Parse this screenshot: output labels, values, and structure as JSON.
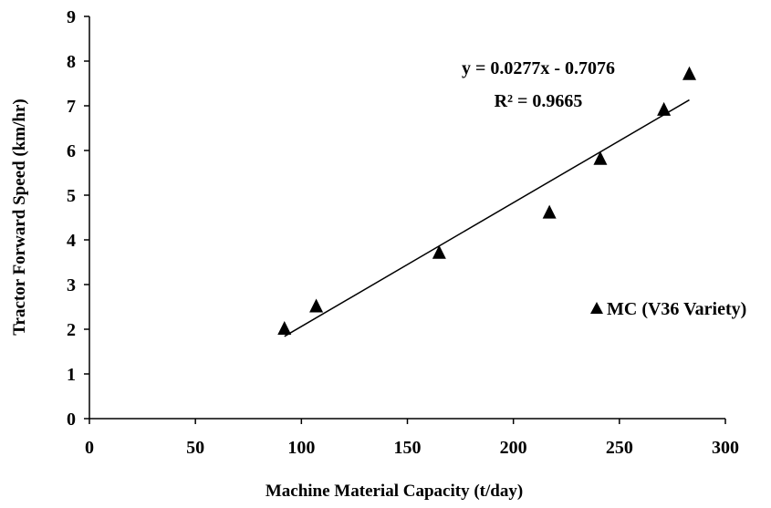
{
  "chart_data": {
    "type": "scatter",
    "title": "",
    "xlabel": "Machine  Material  Capacity  (t/day)",
    "ylabel": "Tractor  Forward  Speed  (km/hr)",
    "xlim": [
      0,
      300
    ],
    "ylim": [
      0,
      9
    ],
    "x_ticks": [
      0,
      50,
      100,
      150,
      200,
      250,
      300
    ],
    "y_ticks": [
      0,
      1,
      2,
      3,
      4,
      5,
      6,
      7,
      8,
      9
    ],
    "grid": false,
    "legend_position": "right",
    "series": [
      {
        "name": "MC (V36 Variety)",
        "marker": "triangle",
        "color": "#000000",
        "x": [
          92,
          107,
          165,
          217,
          241,
          271,
          283
        ],
        "y": [
          2.0,
          2.5,
          3.7,
          4.6,
          5.8,
          6.9,
          7.7
        ]
      }
    ],
    "trendline": {
      "type": "linear",
      "slope": 0.0277,
      "intercept": -0.7076,
      "x_range": [
        92,
        283
      ],
      "equation_label": "y = 0.0277x - 0.7076",
      "r2_label": "R² = 0.9665"
    }
  }
}
